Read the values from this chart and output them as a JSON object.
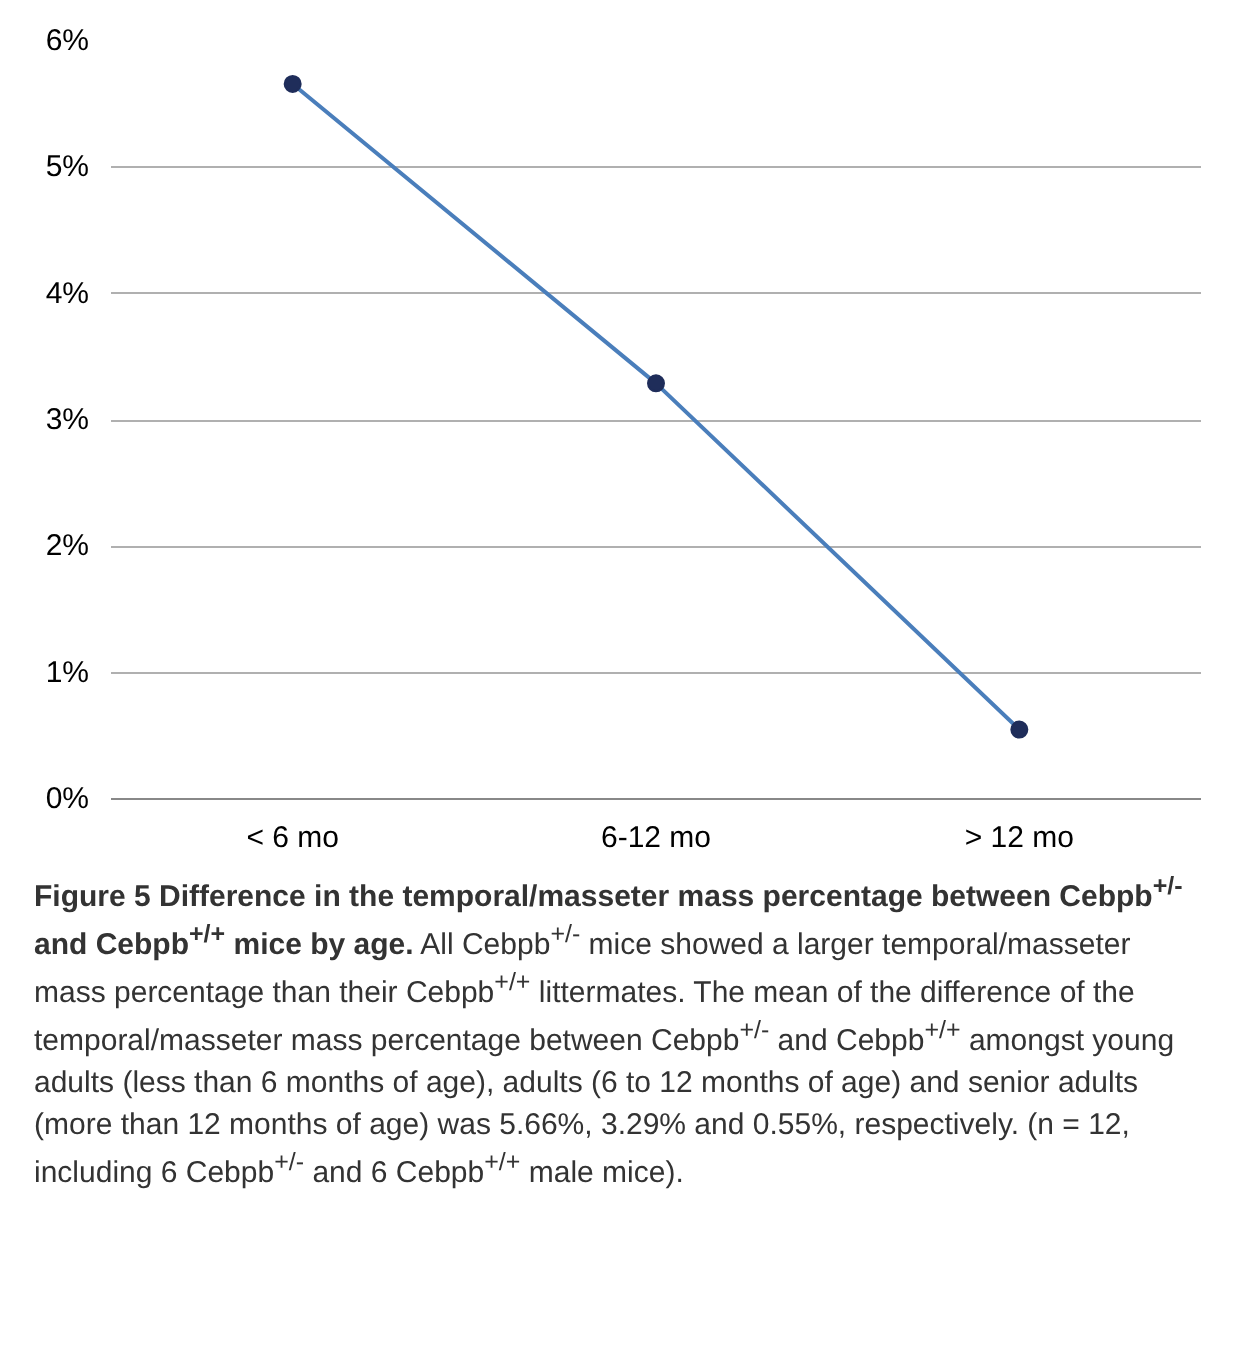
{
  "chart_data": {
    "type": "line",
    "categories": [
      "< 6 mo",
      "6-12 mo",
      "> 12 mo"
    ],
    "series": [
      {
        "color": "#4a7ebb",
        "values": [
          5.66,
          3.29,
          0.55
        ]
      }
    ],
    "ylim": [
      0,
      6
    ],
    "yticks": [
      {
        "value": 0,
        "label": "0%"
      },
      {
        "value": 1,
        "label": "1%"
      },
      {
        "value": 2,
        "label": "2%"
      },
      {
        "value": 3,
        "label": "3%"
      },
      {
        "value": 4,
        "label": "4%"
      },
      {
        "value": 5,
        "label": "5%"
      },
      {
        "value": 6,
        "label": "6%"
      }
    ],
    "grid": "y",
    "marker": "circle",
    "line_style": "solid",
    "title": "Figure 5 Difference in the temporal/masseter mass percentage between Cebpb$^{+/-}$ and Cebpb$^{+/+}$ mice by age.",
    "annotations": [
      "All Cebpb$^{+/-}$ mice showed a larger temporal/masseter mass percentage than their Cebpb$^{+/+}$ littermates. The mean of the difference of the temporal/masseter mass percentage between Cebpb$^{+/-}$ and Cebpb$^{+/+}$ amongst young adults (less than 6 months of age), adults (6 to 12 months of age) and senior adults (more than 12 months of age) was 5.66%, 3.29% and 0.55%, respectively. (n = 12, including 6 Cebpb$^{+/-}$ and 6 Cebpb$^{+/+}$ male mice)."
    ]
  }
}
